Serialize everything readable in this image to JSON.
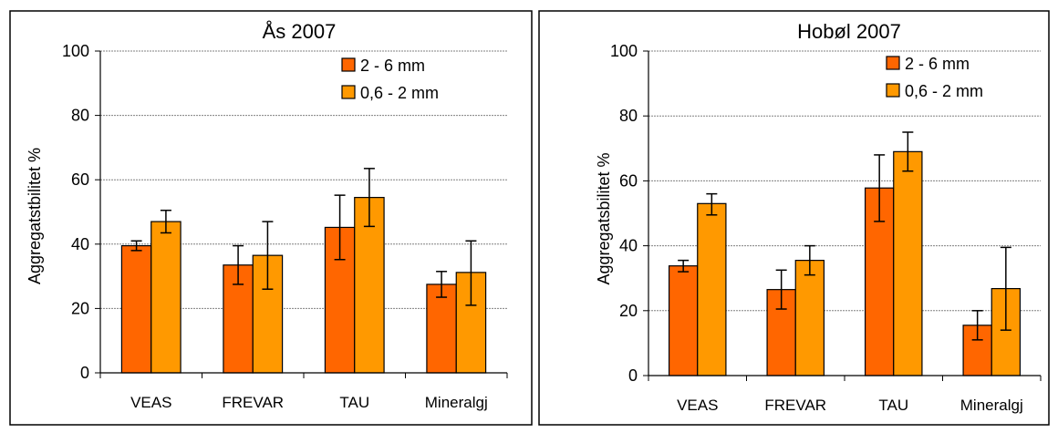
{
  "colors": {
    "series_2_6": "#FF6600",
    "series_06_2": "#FF9900",
    "bar_stroke": "#000000",
    "grid": "#808080",
    "frame": "#000000"
  },
  "chart_data": [
    {
      "type": "bar",
      "title": "Ås 2007",
      "ylabel": "Aggregatstbilitet %",
      "xlabel": "",
      "ylim": [
        0,
        100
      ],
      "yticks": [
        0,
        20,
        40,
        60,
        80,
        100
      ],
      "ytick_labels": [
        "0",
        "20",
        "40",
        "60",
        "80",
        "100"
      ],
      "grid": true,
      "legend_position": "top-right",
      "categories": [
        "VEAS",
        "FREVAR",
        "TAU",
        "Mineralgj"
      ],
      "series": [
        {
          "name": "2 - 6 mm",
          "values": [
            39.5,
            33.5,
            45.2,
            27.5
          ],
          "err_low": [
            38.0,
            27.5,
            35.2,
            23.5
          ],
          "err_high": [
            41.0,
            39.5,
            55.2,
            31.5
          ]
        },
        {
          "name": "0,6 - 2 mm",
          "values": [
            47.0,
            36.5,
            54.5,
            31.2
          ],
          "err_low": [
            43.5,
            26.0,
            45.5,
            21.0
          ],
          "err_high": [
            50.5,
            47.0,
            63.5,
            41.0
          ]
        }
      ]
    },
    {
      "type": "bar",
      "title": "Hobøl 2007",
      "ylabel": "Aggregatsbilitet %",
      "xlabel": "",
      "ylim": [
        0,
        100
      ],
      "yticks": [
        0,
        20,
        40,
        60,
        80,
        100
      ],
      "ytick_labels": [
        "0",
        "20",
        "40",
        "60",
        "80",
        "100"
      ],
      "grid": true,
      "legend_position": "top-right",
      "categories": [
        "VEAS",
        "FREVAR",
        "TAU",
        "Mineralgj"
      ],
      "series": [
        {
          "name": "2 - 6 mm",
          "values": [
            33.8,
            26.5,
            57.8,
            15.5
          ],
          "err_low": [
            32.0,
            20.5,
            47.5,
            11.0
          ],
          "err_high": [
            35.5,
            32.5,
            68.0,
            20.0
          ]
        },
        {
          "name": "0,6 - 2 mm",
          "values": [
            53.0,
            35.5,
            69.0,
            26.8
          ],
          "err_low": [
            49.5,
            31.0,
            63.0,
            14.0
          ],
          "err_high": [
            56.0,
            40.0,
            75.0,
            39.5
          ]
        }
      ]
    }
  ]
}
